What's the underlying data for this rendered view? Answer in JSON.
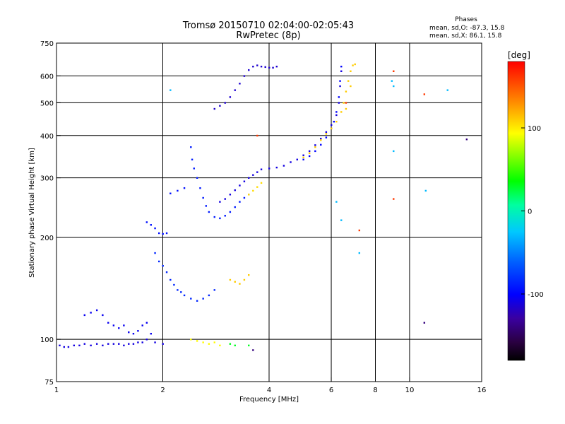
{
  "chart_data": {
    "type": "scatter",
    "title": "Tromsø 20150710 02:04:00-02:05:43",
    "subtitle": "RwPretec (8p)",
    "phases": {
      "heading": "Phases",
      "line_o": "mean, sd,O: -87.3, 15.8",
      "line_x": "mean, sd,X:  86.1, 15.8"
    },
    "xlabel": "Frequency [MHz]",
    "ylabel": "Stationary phase Virtual Height [km]",
    "x_scale": "log",
    "y_scale": "log",
    "xlim": [
      1,
      16
    ],
    "ylim": [
      75,
      750
    ],
    "xticks": [
      1,
      2,
      4,
      6,
      8,
      10,
      16
    ],
    "yticks": [
      75,
      100,
      200,
      300,
      400,
      500,
      600,
      750
    ],
    "grid": true,
    "colorbar": {
      "unit": "[deg]",
      "range": [
        -180,
        180
      ],
      "ticks": [
        100,
        0,
        -100
      ]
    },
    "series": [
      {
        "phase": -110,
        "points": [
          [
            1.02,
            96
          ],
          [
            1.05,
            95
          ],
          [
            1.08,
            95
          ],
          [
            1.12,
            96
          ],
          [
            1.16,
            96
          ],
          [
            1.2,
            97
          ],
          [
            1.25,
            96
          ],
          [
            1.3,
            97
          ],
          [
            1.35,
            96
          ],
          [
            1.4,
            97
          ],
          [
            1.45,
            97
          ],
          [
            1.5,
            97
          ],
          [
            1.55,
            96
          ],
          [
            1.6,
            97
          ],
          [
            1.65,
            97
          ],
          [
            1.7,
            98
          ],
          [
            1.75,
            98
          ],
          [
            1.8,
            100
          ],
          [
            1.9,
            98
          ],
          [
            2.0,
            97
          ]
        ]
      },
      {
        "phase": -105,
        "points": [
          [
            1.2,
            118
          ],
          [
            1.25,
            120
          ],
          [
            1.3,
            122
          ],
          [
            1.35,
            118
          ],
          [
            1.4,
            112
          ],
          [
            1.45,
            110
          ],
          [
            1.5,
            108
          ],
          [
            1.55,
            110
          ],
          [
            1.6,
            105
          ],
          [
            1.65,
            104
          ],
          [
            1.7,
            106
          ],
          [
            1.75,
            110
          ],
          [
            1.8,
            112
          ],
          [
            1.85,
            104
          ]
        ]
      },
      {
        "phase": -95,
        "points": [
          [
            1.8,
            222
          ],
          [
            1.85,
            218
          ],
          [
            1.9,
            213
          ],
          [
            1.95,
            206
          ],
          [
            2.0,
            205
          ],
          [
            2.05,
            206
          ],
          [
            2.1,
            270
          ],
          [
            2.2,
            275
          ],
          [
            2.3,
            280
          ]
        ]
      },
      {
        "phase": -85,
        "points": [
          [
            1.9,
            180
          ],
          [
            1.95,
            170
          ],
          [
            2.0,
            165
          ],
          [
            2.05,
            158
          ],
          [
            2.1,
            150
          ],
          [
            2.15,
            145
          ],
          [
            2.2,
            140
          ],
          [
            2.25,
            138
          ],
          [
            2.3,
            135
          ],
          [
            2.4,
            132
          ],
          [
            2.5,
            130
          ],
          [
            2.6,
            132
          ],
          [
            2.7,
            135
          ],
          [
            2.8,
            140
          ]
        ]
      },
      {
        "phase": -90,
        "points": [
          [
            2.4,
            370
          ],
          [
            2.42,
            340
          ],
          [
            2.45,
            320
          ],
          [
            2.5,
            300
          ],
          [
            2.55,
            280
          ],
          [
            2.6,
            262
          ],
          [
            2.65,
            248
          ],
          [
            2.7,
            238
          ],
          [
            2.8,
            230
          ],
          [
            2.9,
            228
          ],
          [
            3.0,
            232
          ],
          [
            3.1,
            238
          ],
          [
            3.2,
            246
          ],
          [
            3.3,
            255
          ],
          [
            3.4,
            262
          ],
          [
            3.5,
            268
          ]
        ]
      },
      {
        "phase": -110,
        "points": [
          [
            2.9,
            255
          ],
          [
            3.0,
            260
          ],
          [
            3.1,
            268
          ],
          [
            3.2,
            276
          ],
          [
            3.3,
            285
          ],
          [
            3.4,
            293
          ],
          [
            3.5,
            300
          ],
          [
            3.6,
            306
          ],
          [
            3.7,
            312
          ],
          [
            3.8,
            318
          ],
          [
            4.0,
            320
          ],
          [
            4.2,
            322
          ],
          [
            4.4,
            326
          ],
          [
            4.6,
            334
          ],
          [
            4.8,
            340
          ],
          [
            5.0,
            350
          ],
          [
            5.2,
            360
          ],
          [
            5.4,
            375
          ],
          [
            5.6,
            392
          ],
          [
            5.8,
            410
          ],
          [
            6.0,
            430
          ],
          [
            6.2,
            460
          ],
          [
            6.3,
            500
          ],
          [
            6.35,
            560
          ],
          [
            6.4,
            620
          ]
        ]
      },
      {
        "phase": -115,
        "points": [
          [
            2.8,
            480
          ],
          [
            2.9,
            490
          ],
          [
            3.0,
            500
          ],
          [
            3.1,
            520
          ],
          [
            3.2,
            545
          ],
          [
            3.3,
            570
          ],
          [
            3.4,
            600
          ],
          [
            3.5,
            625
          ],
          [
            3.6,
            640
          ],
          [
            3.7,
            645
          ],
          [
            3.8,
            640
          ],
          [
            3.9,
            638
          ],
          [
            4.0,
            635
          ],
          [
            4.1,
            635
          ],
          [
            4.2,
            640
          ]
        ]
      },
      {
        "phase": -100,
        "points": [
          [
            5.0,
            340
          ],
          [
            5.2,
            348
          ],
          [
            5.4,
            360
          ],
          [
            5.6,
            376
          ],
          [
            5.8,
            395
          ],
          [
            6.0,
            420
          ],
          [
            6.1,
            440
          ],
          [
            6.2,
            470
          ],
          [
            6.3,
            520
          ],
          [
            6.35,
            580
          ],
          [
            6.4,
            640
          ]
        ]
      },
      {
        "phase": 110,
        "points": [
          [
            5.0,
            345
          ],
          [
            5.2,
            355
          ],
          [
            5.4,
            370
          ],
          [
            5.6,
            388
          ],
          [
            5.8,
            405
          ],
          [
            6.0,
            420
          ],
          [
            6.2,
            440
          ],
          [
            6.4,
            470
          ],
          [
            6.5,
            500
          ],
          [
            6.6,
            540
          ],
          [
            6.7,
            580
          ],
          [
            6.8,
            620
          ],
          [
            6.9,
            645
          ],
          [
            7.0,
            650
          ],
          [
            6.6,
            480
          ],
          [
            6.8,
            560
          ]
        ]
      },
      {
        "phase": 105,
        "points": [
          [
            3.5,
            268
          ],
          [
            3.6,
            275
          ],
          [
            3.7,
            282
          ],
          [
            3.8,
            290
          ]
        ]
      },
      {
        "phase": 110,
        "points": [
          [
            3.1,
            150
          ],
          [
            3.2,
            148
          ],
          [
            3.3,
            146
          ],
          [
            3.4,
            150
          ],
          [
            3.5,
            155
          ]
        ]
      },
      {
        "phase": 95,
        "points": [
          [
            2.4,
            100
          ],
          [
            2.5,
            99
          ],
          [
            2.6,
            98
          ],
          [
            2.7,
            97
          ],
          [
            2.8,
            98
          ],
          [
            2.9,
            96
          ]
        ]
      },
      {
        "phase": 160,
        "points": [
          [
            6.6,
            500
          ],
          [
            9.0,
            620
          ],
          [
            11.0,
            530
          ],
          [
            3.7,
            400
          ],
          [
            7.2,
            210
          ],
          [
            9.0,
            260
          ]
        ]
      },
      {
        "phase": -30,
        "points": [
          [
            2.1,
            545
          ],
          [
            6.2,
            255
          ],
          [
            6.4,
            225
          ],
          [
            7.2,
            180
          ],
          [
            8.9,
            580
          ],
          [
            9.0,
            560
          ],
          [
            11.1,
            275
          ],
          [
            12.8,
            545
          ],
          [
            9.0,
            360
          ]
        ]
      },
      {
        "phase": 30,
        "points": [
          [
            3.1,
            97
          ],
          [
            3.2,
            96
          ],
          [
            3.5,
            96
          ]
        ]
      },
      {
        "phase": -140,
        "points": [
          [
            11.0,
            112
          ],
          [
            14.5,
            390
          ],
          [
            3.6,
            93
          ]
        ]
      }
    ]
  }
}
